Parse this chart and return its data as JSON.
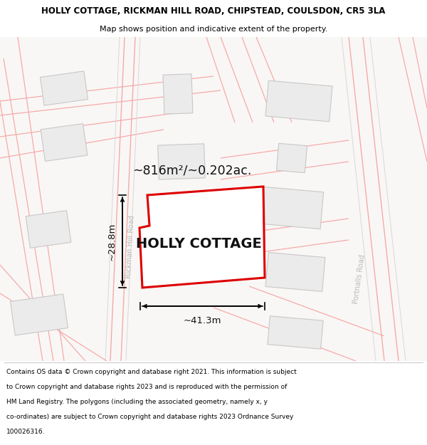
{
  "title_line1": "HOLLY COTTAGE, RICKMAN HILL ROAD, CHIPSTEAD, COULSDON, CR5 3LA",
  "title_line2": "Map shows position and indicative extent of the property.",
  "property_label": "HOLLY COTTAGE",
  "area_label": "~816m²/~0.202ac.",
  "dim_width": "~41.3m",
  "dim_height": "~28.8m",
  "road_label1": "Rickman Hill Road",
  "road_label2": "Portnalls Road",
  "footer_lines": [
    "Contains OS data © Crown copyright and database right 2021. This information is subject",
    "to Crown copyright and database rights 2023 and is reproduced with the permission of",
    "HM Land Registry. The polygons (including the associated geometry, namely x, y",
    "co-ordinates) are subject to Crown copyright and database rights 2023 Ordnance Survey",
    "100026316."
  ],
  "map_bg": "#f9f7f5",
  "property_fill": "#ffffff",
  "property_border": "#dd0000",
  "building_fill": "#ebebeb",
  "building_edge": "#c8c8c8",
  "road_line_color": "#f5aaaa",
  "road_border_color": "#d8d8d8",
  "title_bg": "#ffffff",
  "footer_bg": "#ffffff",
  "title_fontsize": 8.5,
  "subtitle_fontsize": 8.0,
  "area_fontsize": 12.5,
  "property_label_fontsize": 14,
  "dim_fontsize": 9.5,
  "road_label_fontsize": 7,
  "footer_fontsize": 6.5
}
